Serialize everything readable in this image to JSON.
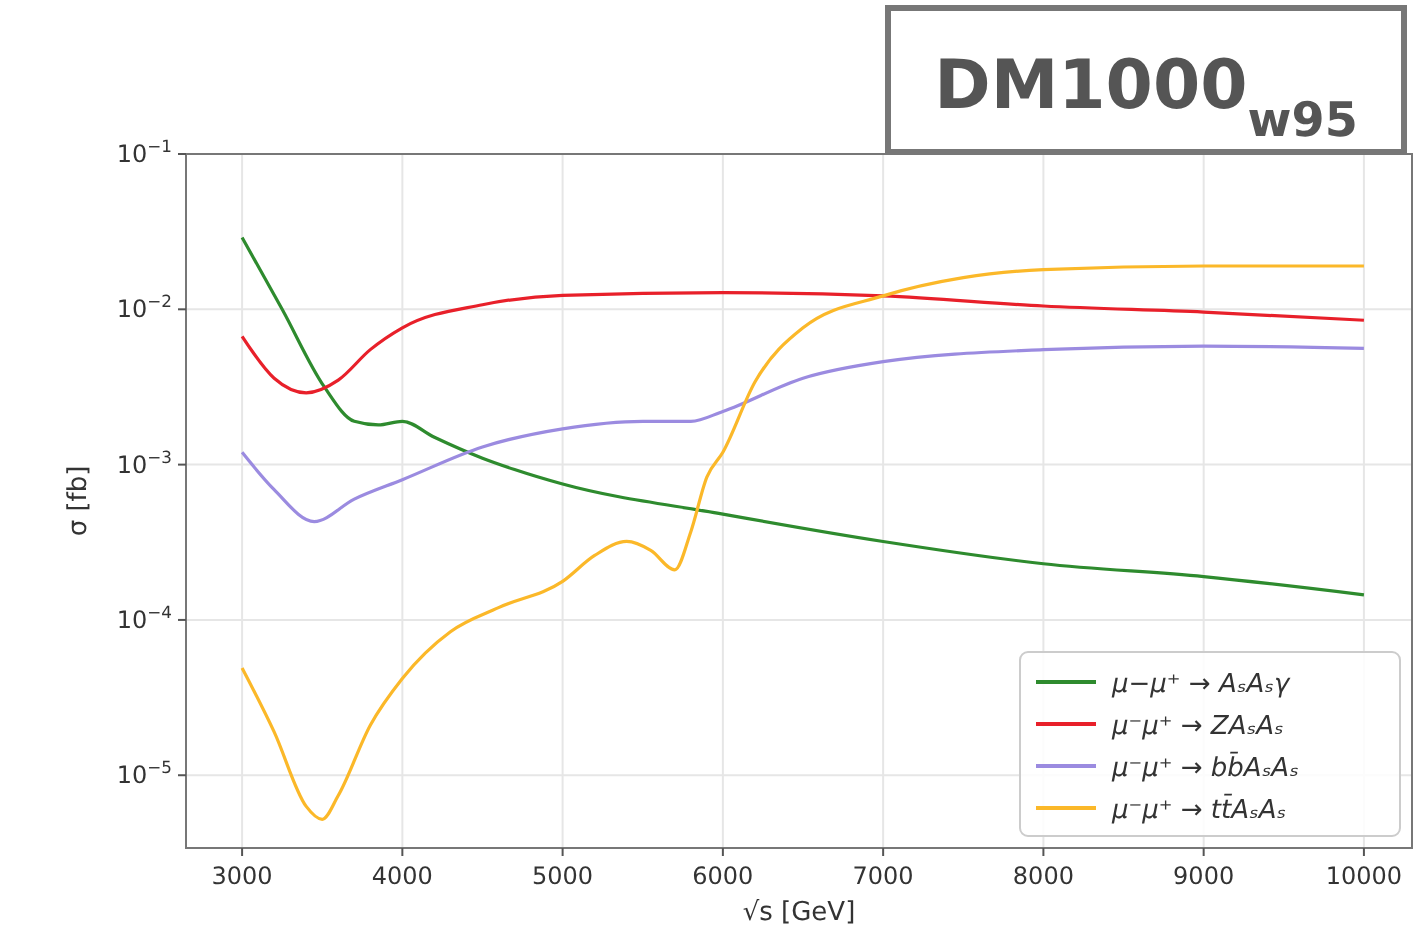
{
  "chart_data": {
    "type": "line",
    "title": "DM1000$_{w95}$",
    "xlabel": "√s [GeV]",
    "ylabel": "σ [fb]",
    "log": "y",
    "grid": true,
    "legend": "bottom right",
    "xlim": [
      2650,
      10300
    ],
    "ylim": [
      3.4e-06,
      0.1
    ],
    "xticks": [
      3000,
      4000,
      5000,
      6000,
      7000,
      8000,
      9000,
      10000
    ],
    "yticks": [
      {
        "value": 1e-05,
        "label": "10$^{−5}$"
      },
      {
        "value": 0.0001,
        "label": "10$^{−4}$"
      },
      {
        "value": 0.001,
        "label": "10$^{−3}$"
      },
      {
        "value": 0.01,
        "label": "10$^{−2}$"
      },
      {
        "value": 0.1,
        "label": "10$^{−1}$"
      }
    ],
    "series": [
      {
        "name": "μ−μ⁺ → AₛAₛγ",
        "color": "#2e8b2e",
        "x": [
          3000,
          3250,
          3510,
          3700,
          3850,
          4000,
          4200,
          4500,
          4700,
          5000,
          6000,
          7000,
          8000,
          9000,
          10000
        ],
        "values": [
          0.029,
          0.01,
          0.0032,
          0.0019,
          0.0018,
          0.0019,
          0.0015,
          0.0011,
          0.00093,
          0.00075,
          0.00048,
          0.00032,
          0.00023,
          0.00019,
          0.000145
        ]
      },
      {
        "name": "μ⁻μ⁺ → ZAₛAₛ",
        "color": "#e8202a",
        "x": [
          3000,
          3200,
          3400,
          3600,
          3800,
          4000,
          4500,
          5000,
          6000,
          7000,
          8000,
          9000,
          10000
        ],
        "values": [
          0.0067,
          0.0036,
          0.0029,
          0.0035,
          0.0055,
          0.0076,
          0.0107,
          0.0123,
          0.0128,
          0.0122,
          0.0105,
          0.0096,
          0.0085
        ]
      },
      {
        "name": "μ⁻μ⁺ → bb̄AₛAₛ",
        "color": "#9b8be0",
        "x": [
          3000,
          3200,
          3450,
          3700,
          4000,
          4500,
          5000,
          5500,
          5800,
          6000,
          6500,
          7000,
          8000,
          9000,
          10000
        ],
        "values": [
          0.0012,
          0.00069,
          0.00043,
          0.0006,
          0.0008,
          0.0013,
          0.0017,
          0.0019,
          0.0019,
          0.0022,
          0.0036,
          0.0046,
          0.0055,
          0.0058,
          0.0056
        ]
      },
      {
        "name": "μ⁻μ⁺ → tt̄AₛAₛ",
        "color": "#fbb829",
        "x": [
          3000,
          3200,
          3400,
          3500,
          3600,
          3800,
          4000,
          4300,
          4600,
          5000,
          5200,
          5400,
          5550,
          5700,
          5800,
          5900,
          6000,
          6200,
          6500,
          7000,
          7500,
          8000,
          9000,
          10000
        ],
        "values": [
          4.9e-05,
          1.9e-05,
          6.3e-06,
          5.2e-06,
          7.4e-06,
          2.1e-05,
          4.2e-05,
          8.4e-05,
          0.00012,
          0.000177,
          0.00026,
          0.00032,
          0.00028,
          0.00021,
          0.00037,
          0.00083,
          0.0012,
          0.0034,
          0.0076,
          0.0122,
          0.016,
          0.018,
          0.019,
          0.019
        ]
      }
    ]
  }
}
